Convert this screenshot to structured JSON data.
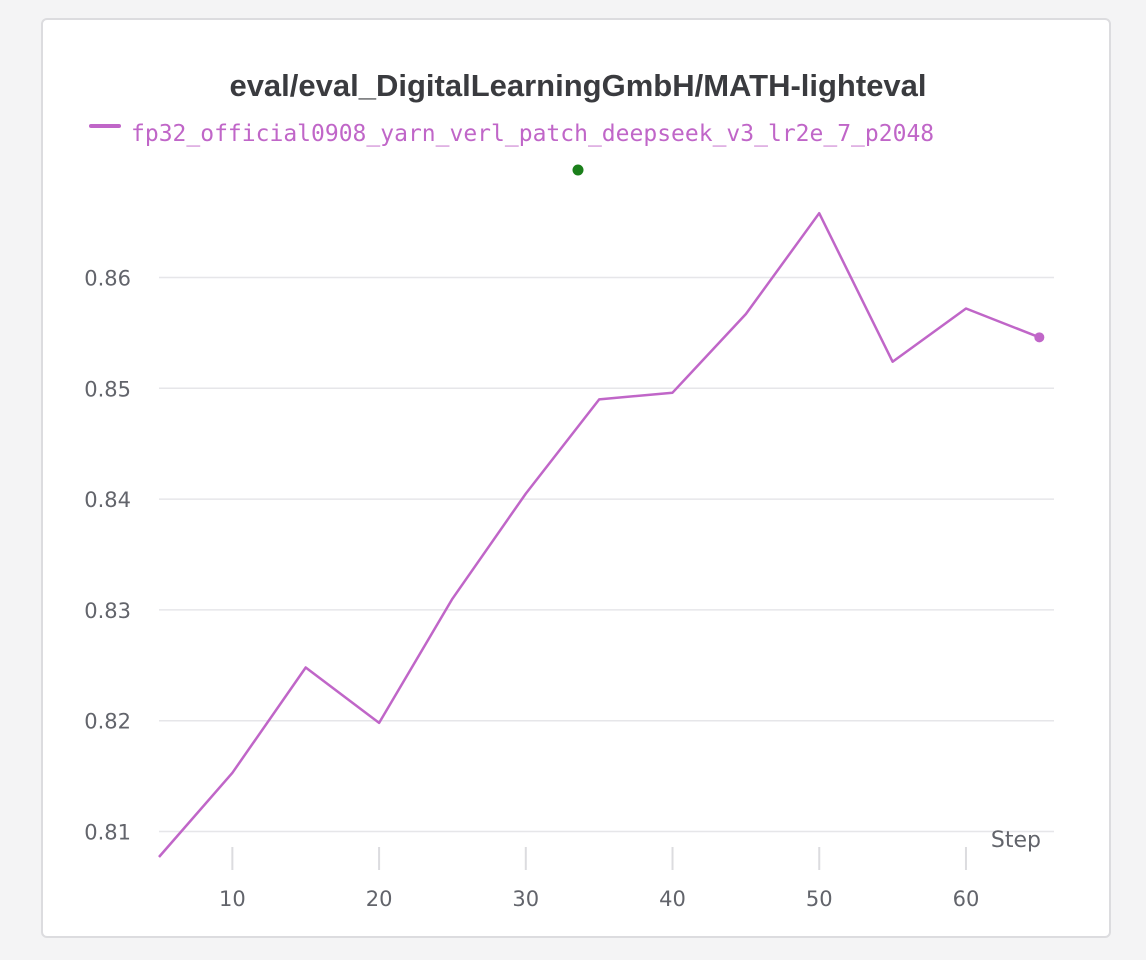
{
  "chart_data": {
    "type": "line",
    "title": "eval/eval_DigitalLearningGmbH/MATH-lighteval",
    "xlabel": "Step",
    "ylabel": "",
    "xlim": [
      5,
      66
    ],
    "ylim": [
      0.8077,
      0.8697
    ],
    "x_ticks": [
      10,
      20,
      30,
      40,
      50,
      60
    ],
    "y_ticks": [
      0.81,
      0.82,
      0.83,
      0.84,
      0.85,
      0.86
    ],
    "grid": "horizontal",
    "legend_position": "top",
    "series": [
      {
        "name": "fp32_official0908_yarn_verl_patch_deepseek_v3_lr2e_7_p2048",
        "color": "#c066c8",
        "x": [
          5,
          10,
          15,
          20,
          25,
          30,
          35,
          40,
          45,
          50,
          55,
          60,
          65
        ],
        "y": [
          0.8077,
          0.8153,
          0.8248,
          0.8198,
          0.831,
          0.8405,
          0.849,
          0.8496,
          0.8567,
          0.8658,
          0.8524,
          0.8572,
          0.8546
        ]
      }
    ],
    "marker_color": "#1a7f1a"
  }
}
